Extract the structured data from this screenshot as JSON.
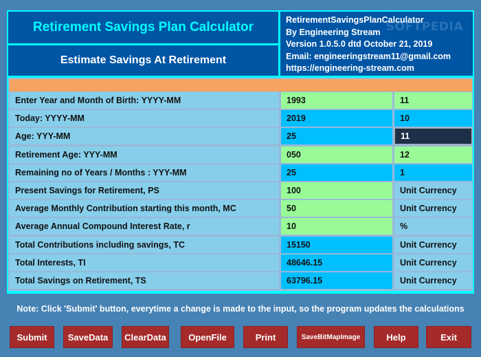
{
  "header": {
    "title": "Retirement Savings Plan Calculator",
    "subtitle": "Estimate Savings At Retirement",
    "info": [
      "RetirementSavingsPlanCalculator",
      "By Engineering Stream",
      "Version 1.0.5.0 dtd October 21, 2019",
      "Email: engineeringstream11@gmail.com",
      "https://engineering-stream.com"
    ],
    "watermark": "SOFTPEDIA"
  },
  "rows": [
    {
      "label": "Enter Year and Month of Birth: YYYY-MM",
      "value": "1993",
      "unit": "11",
      "vc": "g",
      "uc": "g"
    },
    {
      "label": "Today: YYYY-MM",
      "value": "2019",
      "unit": "10",
      "vc": "b",
      "uc": "b"
    },
    {
      "label": "Age: YYY-MM",
      "value": "25",
      "unit": "11",
      "vc": "b",
      "uc": "d"
    },
    {
      "label": "Retirement Age: YYY-MM",
      "value": "050",
      "unit": "12",
      "vc": "g",
      "uc": "g"
    },
    {
      "label": "Remaining no of Years / Months : YYY-MM",
      "value": "25",
      "unit": "1",
      "vc": "b",
      "uc": "b"
    },
    {
      "label": "Present Savings for Retirement, PS",
      "value": "100",
      "unit": "Unit Currency",
      "vc": "g",
      "uc": "s"
    },
    {
      "label": "Average Monthly Contribution starting this month, MC",
      "value": "50",
      "unit": "Unit Currency",
      "vc": "g",
      "uc": "s"
    },
    {
      "label": "Average Annual Compound Interest Rate, r",
      "value": "10",
      "unit": "%",
      "vc": "g",
      "uc": "s"
    },
    {
      "label": "Total Contributions including savings, TC",
      "value": "15150",
      "unit": "Unit Currency",
      "vc": "b",
      "uc": "s"
    },
    {
      "label": "Total Interests, TI",
      "value": "48646.15",
      "unit": "Unit Currency",
      "vc": "b",
      "uc": "s"
    },
    {
      "label": "Total Savings on Retirement, TS",
      "value": "63796.15",
      "unit": "Unit Currency",
      "vc": "b",
      "uc": "s"
    }
  ],
  "note": "Note: Click 'Submit' button, everytime a change is made to the input, so the program updates the calculations",
  "buttons": [
    "Submit",
    "SaveData",
    "ClearData",
    "OpenFile",
    "Print",
    "SaveBitMapImage",
    "Help",
    "Exit"
  ],
  "colors": {
    "bg": "#4682b4",
    "header": "#0055a5",
    "accent": "#00ffff",
    "input": "#98fb98",
    "output": "#00bfff",
    "button": "#a52a2a"
  }
}
